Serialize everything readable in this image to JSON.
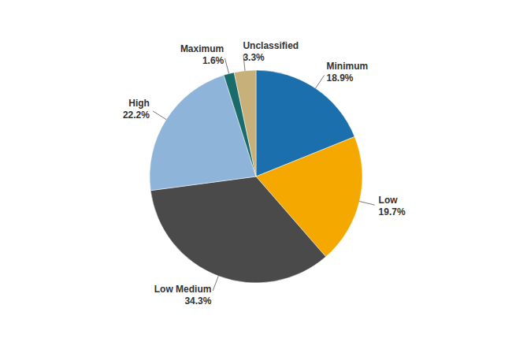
{
  "chart_data": {
    "type": "pie",
    "categories": [
      "Minimum",
      "Low",
      "Low Medium",
      "High",
      "Maximum",
      "Unclassified"
    ],
    "values": [
      18.9,
      19.7,
      34.3,
      22.2,
      1.6,
      3.3
    ],
    "value_labels": [
      "18.9%",
      "19.7%",
      "34.3%",
      "22.2%",
      "1.6%",
      "3.3%"
    ],
    "colors": [
      "#1b6fad",
      "#f5a800",
      "#4a4a4a",
      "#8fb4d9",
      "#1a6b6b",
      "#c8b07a"
    ],
    "data_labels": true
  }
}
